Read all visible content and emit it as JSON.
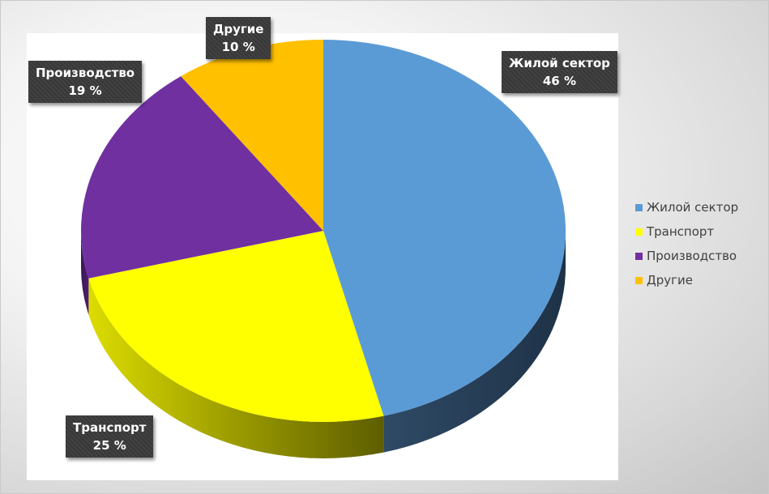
{
  "chart_data": {
    "type": "pie",
    "style": "3d",
    "categories": [
      "Жилой сектор",
      "Транспорт",
      "Производство",
      "Другие"
    ],
    "values": [
      46,
      25,
      19,
      10
    ],
    "data_labels": [
      {
        "category": "Жилой сектор",
        "value": "46 %"
      },
      {
        "category": "Транспорт",
        "value": "25 %"
      },
      {
        "category": "Производство",
        "value": "19 %"
      },
      {
        "category": "Другие",
        "value": "10 %"
      }
    ],
    "colors": [
      "#5b9bd5",
      "#ffff00",
      "#7030a0",
      "#ffc000"
    ],
    "legend_position": "right"
  }
}
